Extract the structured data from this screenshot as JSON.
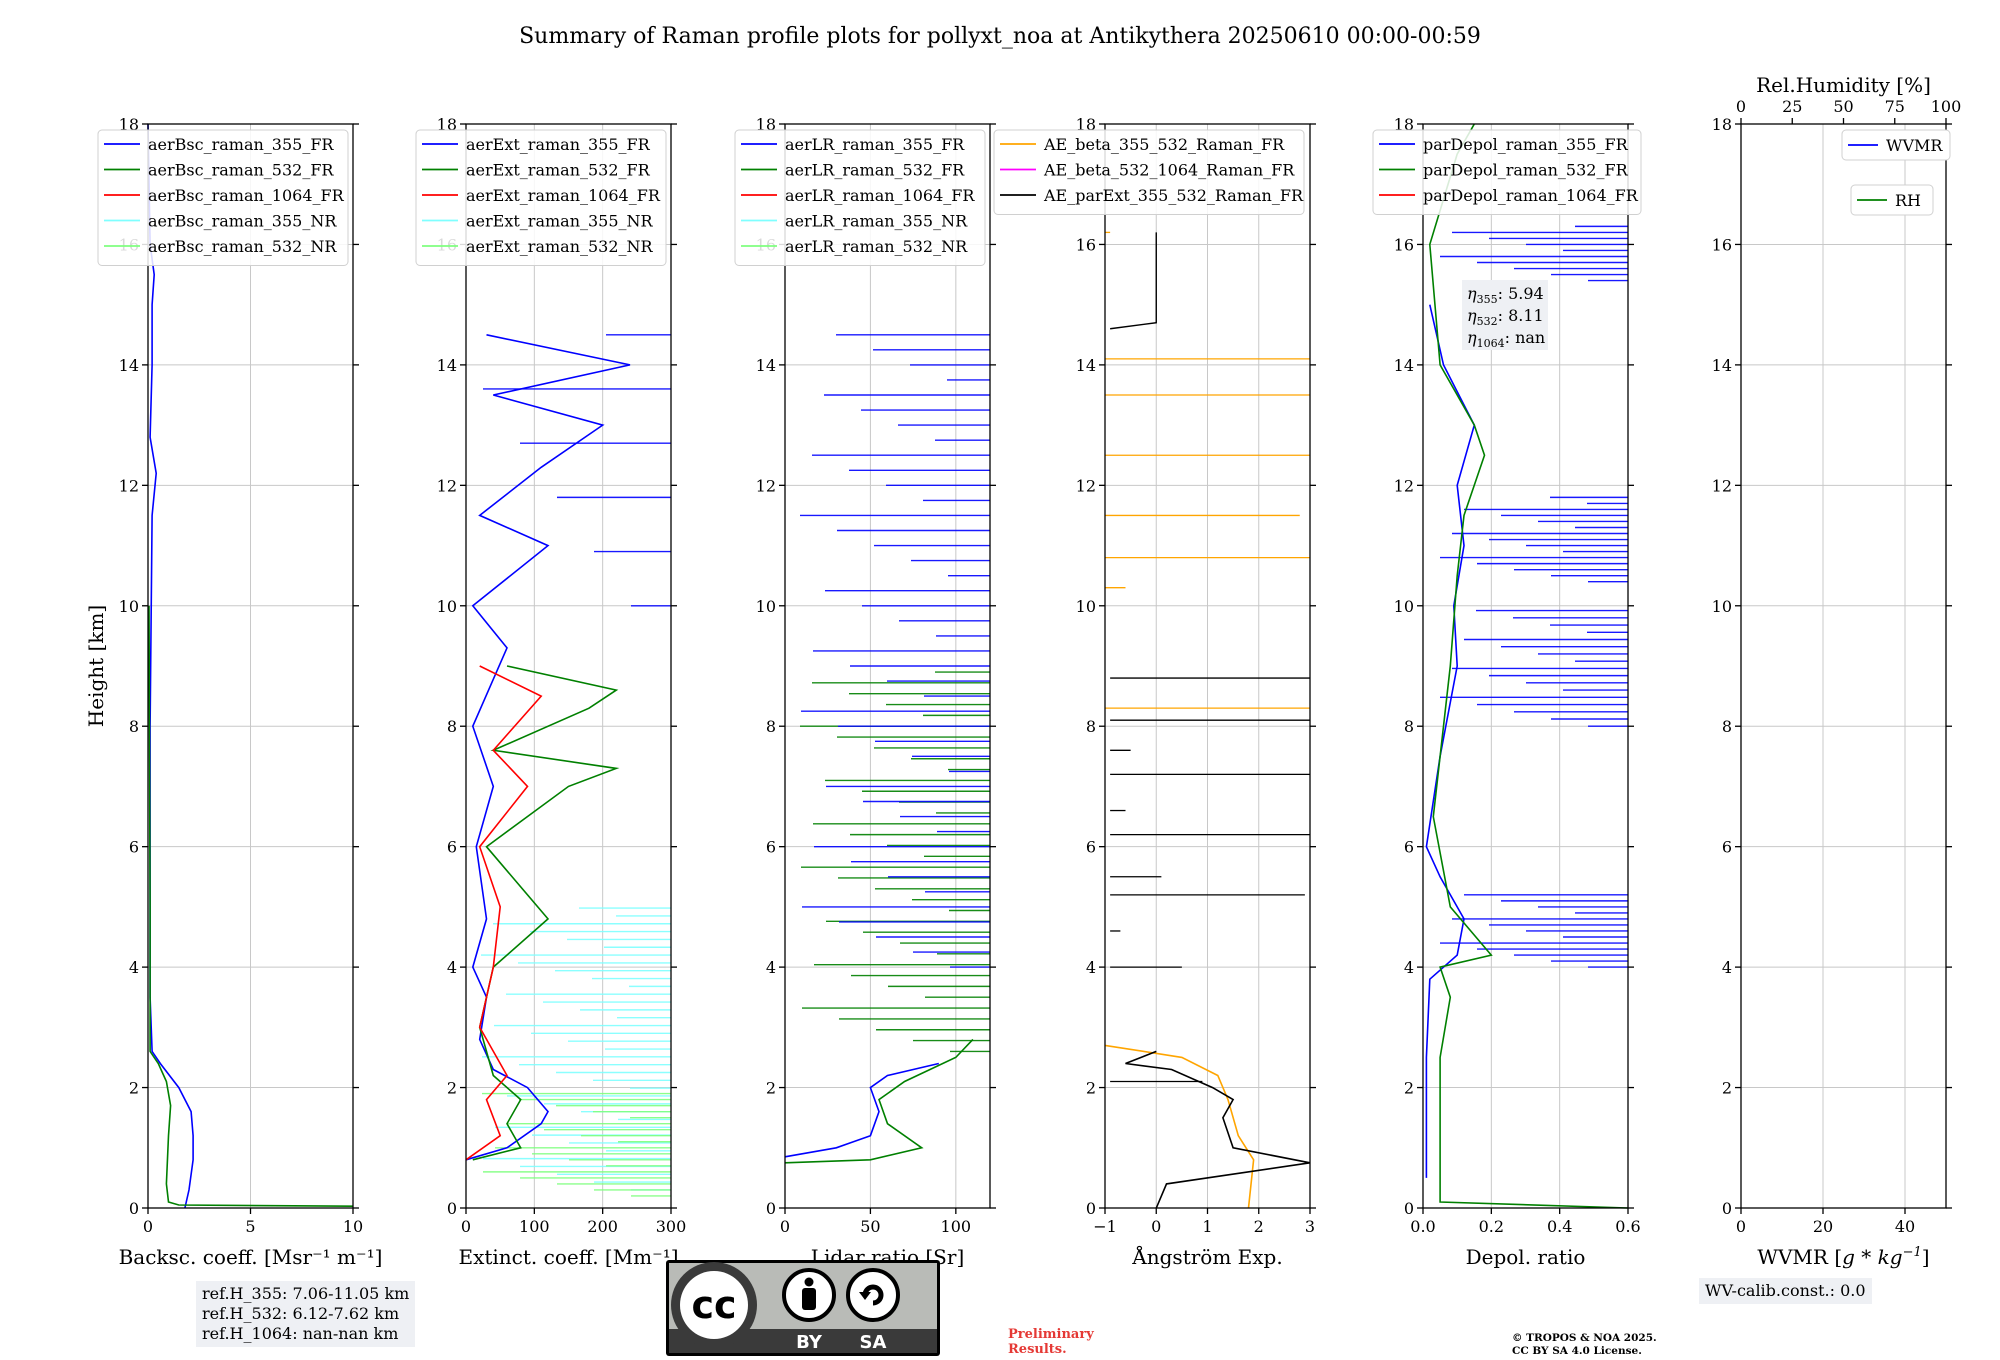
{
  "title": "Summary of Raman profile plots for pollyxt_noa at Antikythera 20250610 00:00-00:59",
  "colors": {
    "blue": "#0000ff",
    "green": "#008000",
    "red": "#ff0000",
    "cyan": "#7fffff",
    "lightgreen": "#7fff7f",
    "orange": "#ffa500",
    "magenta": "#ff00ff",
    "black": "#000000",
    "grid": "#c8c8c8"
  },
  "chart_data": [
    {
      "id": "bsc",
      "type": "line",
      "xlabel": "Backsc. coeff. [Msr⁻¹ m⁻¹]",
      "ylabel": "Height [km]",
      "xlim": [
        0,
        10
      ],
      "ylim": [
        0,
        18
      ],
      "xticks": [
        "0",
        "5",
        "10"
      ],
      "xtick_values": [
        0,
        5,
        10
      ],
      "yticks": [
        "0",
        "2",
        "4",
        "6",
        "8",
        "10",
        "12",
        "14",
        "16",
        "18"
      ],
      "legend": [
        "aerBsc_raman_355_FR",
        "aerBsc_raman_532_FR",
        "aerBsc_raman_1064_FR",
        "aerBsc_raman_355_NR",
        "aerBsc_raman_532_NR"
      ],
      "legend_colors": [
        "#0000ff",
        "#008000",
        "#ff0000",
        "#7fffff",
        "#7fff7f"
      ],
      "series": [
        {
          "name": "aerBsc_raman_355_FR",
          "color": "#0000ff",
          "points": [
            [
              1.8,
              0
            ],
            [
              2.0,
              0.3
            ],
            [
              2.2,
              0.8
            ],
            [
              2.2,
              1.2
            ],
            [
              2.1,
              1.6
            ],
            [
              1.5,
              2.0
            ],
            [
              0.6,
              2.4
            ],
            [
              0.2,
              2.6
            ],
            [
              0.1,
              3.5
            ],
            [
              0.1,
              8
            ],
            [
              0.2,
              11.5
            ],
            [
              0.4,
              12.2
            ],
            [
              0.1,
              12.8
            ],
            [
              0.2,
              14
            ],
            [
              0.2,
              15
            ],
            [
              0.3,
              15.5
            ],
            [
              0.1,
              16
            ],
            [
              0.0,
              18
            ]
          ]
        },
        {
          "name": "aerBsc_raman_532_FR",
          "color": "#008000",
          "points": [
            [
              10,
              0.03
            ],
            [
              1.5,
              0.05
            ],
            [
              1.0,
              0.1
            ],
            [
              0.9,
              0.4
            ],
            [
              1.0,
              1.2
            ],
            [
              1.1,
              1.7
            ],
            [
              0.9,
              2.1
            ],
            [
              0.5,
              2.4
            ],
            [
              0.1,
              2.6
            ],
            [
              0.1,
              5
            ],
            [
              0.05,
              10
            ]
          ]
        }
      ],
      "refH": [
        "ref.H_355: 7.06-11.05 km",
        "ref.H_532: 6.12-7.62 km",
        "ref.H_1064: nan-nan km"
      ]
    },
    {
      "id": "ext",
      "type": "line",
      "xlabel": "Extinct. coeff. [Mm⁻¹]",
      "xlim": [
        0,
        300
      ],
      "ylim": [
        0,
        18
      ],
      "xticks": [
        "0",
        "100",
        "200",
        "300"
      ],
      "xtick_values": [
        0,
        100,
        200,
        300
      ],
      "yticks": [
        "0",
        "2",
        "4",
        "6",
        "8",
        "10",
        "12",
        "14",
        "16",
        "18"
      ],
      "legend": [
        "aerExt_raman_355_FR",
        "aerExt_raman_532_FR",
        "aerExt_raman_1064_FR",
        "aerExt_raman_355_NR",
        "aerExt_raman_532_NR"
      ],
      "legend_colors": [
        "#0000ff",
        "#008000",
        "#ff0000",
        "#7fffff",
        "#7fff7f"
      ],
      "series": [
        {
          "name": "aerExt_raman_355_FR",
          "color": "#0000ff",
          "points": [
            [
              0,
              0.8
            ],
            [
              60,
              1.0
            ],
            [
              110,
              1.4
            ],
            [
              120,
              1.6
            ],
            [
              90,
              2.0
            ],
            [
              40,
              2.3
            ],
            [
              20,
              2.8
            ],
            [
              30,
              3.5
            ],
            [
              10,
              4.0
            ],
            [
              30,
              4.8
            ],
            [
              15,
              6.0
            ],
            [
              40,
              7.0
            ],
            [
              10,
              8.0
            ],
            [
              60,
              9.3
            ],
            [
              10,
              10.0
            ],
            [
              120,
              11.0
            ],
            [
              20,
              11.5
            ],
            [
              110,
              12.3
            ],
            [
              200,
              13.0
            ],
            [
              40,
              13.5
            ],
            [
              240,
              14.0
            ],
            [
              30,
              14.5
            ]
          ]
        },
        {
          "name": "aerExt_raman_532_FR",
          "color": "#008000",
          "points": [
            [
              10,
              0.8
            ],
            [
              80,
              1.0
            ],
            [
              60,
              1.4
            ],
            [
              80,
              1.8
            ],
            [
              40,
              2.2
            ],
            [
              20,
              3.0
            ],
            [
              40,
              4.0
            ],
            [
              120,
              4.8
            ],
            [
              30,
              6.0
            ],
            [
              150,
              7.0
            ],
            [
              220,
              7.3
            ],
            [
              40,
              7.6
            ],
            [
              180,
              8.3
            ],
            [
              220,
              8.6
            ],
            [
              60,
              9.0
            ]
          ]
        },
        {
          "name": "aerExt_raman_1064_FR",
          "color": "#ff0000",
          "points": [
            [
              0,
              0.8
            ],
            [
              50,
              1.2
            ],
            [
              30,
              1.8
            ],
            [
              60,
              2.2
            ],
            [
              20,
              3.0
            ],
            [
              40,
              4.0
            ],
            [
              50,
              5.0
            ],
            [
              20,
              6.0
            ],
            [
              90,
              7.0
            ],
            [
              40,
              7.6
            ],
            [
              110,
              8.5
            ],
            [
              20,
              9.0
            ]
          ]
        }
      ]
    },
    {
      "id": "lr",
      "type": "line",
      "xlabel": "Lidar ratio [Sr]",
      "xlim": [
        0,
        120
      ],
      "ylim": [
        0,
        18
      ],
      "xticks": [
        "0",
        "50",
        "100"
      ],
      "xtick_values": [
        0,
        50,
        100
      ],
      "yticks": [
        "0",
        "2",
        "4",
        "6",
        "8",
        "10",
        "12",
        "14",
        "16",
        "18"
      ],
      "legend": [
        "aerLR_raman_355_FR",
        "aerLR_raman_532_FR",
        "aerLR_raman_1064_FR",
        "aerLR_raman_355_NR",
        "aerLR_raman_532_NR"
      ],
      "legend_colors": [
        "#0000ff",
        "#008000",
        "#ff0000",
        "#7fffff",
        "#7fff7f"
      ],
      "series": [
        {
          "name": "aerLR_raman_355_FR",
          "color": "#0000ff",
          "points": [
            [
              0,
              0.85
            ],
            [
              30,
              1.0
            ],
            [
              50,
              1.2
            ],
            [
              55,
              1.6
            ],
            [
              50,
              2.0
            ],
            [
              60,
              2.2
            ],
            [
              90,
              2.4
            ]
          ]
        },
        {
          "name": "aerLR_raman_532_FR",
          "color": "#008000",
          "points": [
            [
              0,
              0.75
            ],
            [
              50,
              0.8
            ],
            [
              80,
              1.0
            ],
            [
              60,
              1.4
            ],
            [
              55,
              1.8
            ],
            [
              70,
              2.1
            ],
            [
              100,
              2.5
            ],
            [
              110,
              2.8
            ]
          ]
        }
      ]
    },
    {
      "id": "ae",
      "type": "line",
      "xlabel": "Ångström Exp.",
      "xlim": [
        -1,
        3
      ],
      "ylim": [
        0,
        18
      ],
      "xticks": [
        "−1",
        "0",
        "1",
        "2",
        "3"
      ],
      "xtick_values": [
        -1,
        0,
        1,
        2,
        3
      ],
      "yticks": [
        "0",
        "2",
        "4",
        "6",
        "8",
        "10",
        "12",
        "14",
        "16",
        "18"
      ],
      "legend": [
        "AE_beta_355_532_Raman_FR",
        "AE_beta_532_1064_Raman_FR",
        "AE_parExt_355_532_Raman_FR"
      ],
      "legend_colors": [
        "#ffa500",
        "#ff00ff",
        "#000000"
      ],
      "series": [
        {
          "name": "AE_beta_355_532_Raman_FR",
          "color": "#ffa500",
          "points": [
            [
              1.8,
              0
            ],
            [
              1.9,
              0.8
            ],
            [
              1.6,
              1.2
            ],
            [
              1.4,
              1.8
            ],
            [
              1.2,
              2.2
            ],
            [
              0.5,
              2.5
            ],
            [
              -1,
              2.7
            ]
          ]
        },
        {
          "name": "AE_parExt_355_532_Raman_FR",
          "color": "#000000",
          "points": [
            [
              0,
              0
            ],
            [
              0.2,
              0.4
            ],
            [
              3,
              0.75
            ],
            [
              1.5,
              1.0
            ],
            [
              1.3,
              1.5
            ],
            [
              1.5,
              1.8
            ],
            [
              1.1,
              2.0
            ],
            [
              0.3,
              2.3
            ],
            [
              -0.6,
              2.4
            ],
            [
              0,
              2.6
            ]
          ]
        }
      ]
    },
    {
      "id": "dep",
      "type": "line",
      "xlabel": "Depol. ratio",
      "xlim": [
        0,
        0.6
      ],
      "ylim": [
        0,
        18
      ],
      "xticks": [
        "0.0",
        "0.2",
        "0.4",
        "0.6"
      ],
      "xtick_values": [
        0,
        0.2,
        0.4,
        0.6
      ],
      "yticks": [
        "0",
        "2",
        "4",
        "6",
        "8",
        "10",
        "12",
        "14",
        "16",
        "18"
      ],
      "legend": [
        "parDepol_raman_355_FR",
        "parDepol_raman_532_FR",
        "parDepol_raman_1064_FR"
      ],
      "legend_colors": [
        "#0000ff",
        "#008000",
        "#ff0000"
      ],
      "series": [
        {
          "name": "parDepol_raman_355_FR",
          "color": "#0000ff",
          "points": [
            [
              0.01,
              0.5
            ],
            [
              0.01,
              2.5
            ],
            [
              0.02,
              3.8
            ],
            [
              0.1,
              4.2
            ],
            [
              0.12,
              4.8
            ],
            [
              0.05,
              5.5
            ],
            [
              0.01,
              6.0
            ],
            [
              0.05,
              7.5
            ],
            [
              0.1,
              9.0
            ],
            [
              0.09,
              10.0
            ],
            [
              0.12,
              11.0
            ],
            [
              0.1,
              12.0
            ],
            [
              0.15,
              13.0
            ],
            [
              0.06,
              14.0
            ],
            [
              0.02,
              15.0
            ]
          ]
        },
        {
          "name": "parDepol_raman_532_FR",
          "color": "#008000",
          "points": [
            [
              0.6,
              0
            ],
            [
              0.05,
              0.1
            ],
            [
              0.05,
              2.5
            ],
            [
              0.08,
              3.5
            ],
            [
              0.05,
              4.0
            ],
            [
              0.2,
              4.2
            ],
            [
              0.08,
              5.0
            ],
            [
              0.03,
              6.5
            ],
            [
              0.05,
              7.5
            ],
            [
              0.08,
              9.0
            ],
            [
              0.1,
              10.5
            ],
            [
              0.12,
              11.5
            ],
            [
              0.18,
              12.5
            ],
            [
              0.15,
              13.0
            ],
            [
              0.05,
              14.0
            ],
            [
              0.02,
              16.0
            ],
            [
              0.1,
              17.5
            ],
            [
              0.15,
              18.0
            ]
          ]
        }
      ],
      "eta": [
        {
          "sym": "η",
          "sub": "355",
          "value": ": 5.94"
        },
        {
          "sym": "η",
          "sub": "532",
          "value": ": 8.11"
        },
        {
          "sym": "η",
          "sub": "1064",
          "value": ": nan"
        }
      ]
    },
    {
      "id": "wv",
      "type": "line",
      "xlabel": "WVMR [g*kg⁻¹]",
      "xlabel_parts": [
        "WVMR [",
        "g * kg",
        "−1",
        "]"
      ],
      "xlim": [
        0,
        50
      ],
      "ylim": [
        0,
        18
      ],
      "xticks": [
        "0",
        "20",
        "40"
      ],
      "xtick_values": [
        0,
        20,
        40
      ],
      "yticks": [
        "0",
        "2",
        "4",
        "6",
        "8",
        "10",
        "12",
        "14",
        "16",
        "18"
      ],
      "top_xlabel": "Rel.Humidity [%]",
      "top_xticks": [
        "0",
        "25",
        "50",
        "75",
        "100"
      ],
      "top_xtick_values": [
        0,
        25,
        50,
        75,
        100
      ],
      "legend": [
        "WVMR",
        "RH"
      ],
      "legend_colors": [
        "#0000ff",
        "#008000"
      ],
      "series": [],
      "calib": "WV-calib.const.: 0.0"
    }
  ],
  "license": {
    "cc": "cc",
    "by": "BY",
    "sa": "SA"
  },
  "preliminary": [
    "Preliminary",
    "Results."
  ],
  "copyright": [
    "© TROPOS & NOA 2025.",
    "CC BY SA 4.0 License."
  ]
}
